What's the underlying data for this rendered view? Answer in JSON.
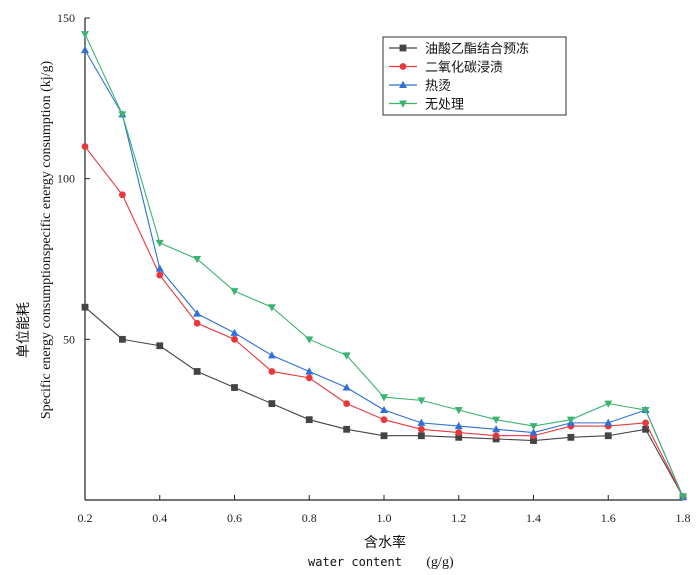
{
  "chart_data": {
    "type": "line",
    "xlabel_cn": "含水率",
    "xlabel_en": "water content",
    "xlabel_unit": "(g/g)",
    "ylabel_cn": "单位能耗",
    "ylabel_en": "Specific energy consumptionspecific energy consumption (kj/g)",
    "xlim": [
      0.2,
      1.8
    ],
    "ylim": [
      0,
      150
    ],
    "x_ticks": [
      "0.2",
      "0.4",
      "0.6",
      "0.8",
      "1.0",
      "1.2",
      "1.4",
      "1.6",
      "1.8"
    ],
    "y_ticks": [
      "50",
      "100",
      "150"
    ],
    "legend_position": "top-right",
    "x": [
      0.2,
      0.3,
      0.4,
      0.5,
      0.6,
      0.7,
      0.8,
      0.9,
      1.0,
      1.1,
      1.2,
      1.3,
      1.4,
      1.5,
      1.6,
      1.7,
      1.8
    ],
    "series": [
      {
        "name": "油酸乙酯结合预冻",
        "color": "#444444",
        "marker": "square",
        "values": [
          60,
          50,
          48,
          40,
          35,
          30,
          25,
          22,
          20,
          20,
          19.5,
          19,
          18.5,
          19.5,
          20,
          22,
          1
        ]
      },
      {
        "name": "二氧化碳浸渍",
        "color": "#e8383d",
        "marker": "circle",
        "values": [
          110,
          95,
          70,
          55,
          50,
          40,
          38,
          30,
          25,
          22,
          21,
          20,
          20,
          23,
          23,
          24,
          1
        ]
      },
      {
        "name": "热烫",
        "color": "#2f6fd6",
        "marker": "triangle-up",
        "values": [
          140,
          120,
          72,
          58,
          52,
          45,
          40,
          35,
          28,
          24,
          23,
          22,
          21,
          24,
          24,
          28,
          1
        ]
      },
      {
        "name": "无处理",
        "color": "#3cb371",
        "marker": "triangle-down",
        "values": [
          145,
          120,
          80,
          75,
          65,
          60,
          50,
          45,
          32,
          31,
          28,
          25,
          23,
          25,
          30,
          28,
          1
        ]
      }
    ]
  }
}
